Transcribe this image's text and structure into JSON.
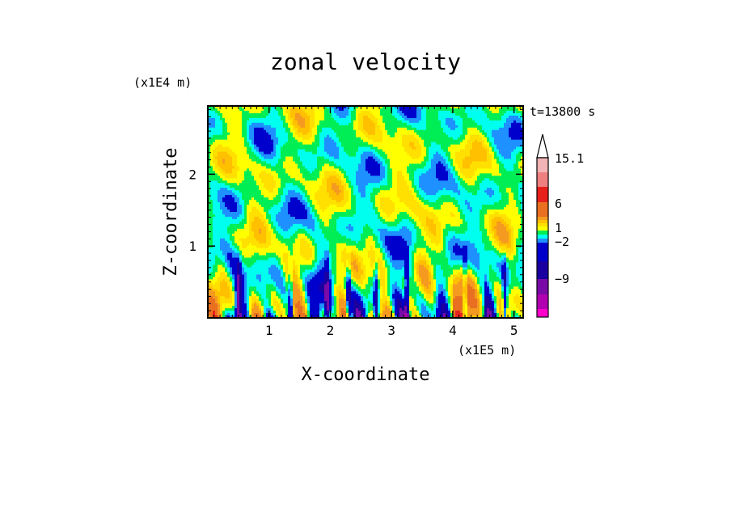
{
  "chart_data": {
    "type": "heatmap",
    "title": "zonal velocity",
    "xlabel": "X-coordinate",
    "ylabel": "Z-coordinate",
    "x_unit": "(x1E5 m)",
    "y_unit": "(x1E4 m)",
    "time_label": "t=13800 s",
    "xlim": [
      0,
      5.15
    ],
    "ylim": [
      0,
      2.95
    ],
    "x_ticks": [
      "1",
      "2",
      "3",
      "4",
      "5"
    ],
    "y_ticks": [
      "1",
      "2"
    ],
    "x_tick_values": [
      1,
      2,
      3,
      4,
      5
    ],
    "y_tick_values": [
      1,
      2
    ],
    "colorbar": {
      "labels": [
        "15.1",
        "6",
        "1",
        "-2",
        "-9"
      ],
      "label_values": [
        15.1,
        6,
        1,
        -2,
        -9
      ],
      "levels": [
        {
          "value": 15.1,
          "color": "#f2b4b4"
        },
        {
          "value": 12,
          "color": "#f08080"
        },
        {
          "value": 9,
          "color": "#e8201c"
        },
        {
          "value": 6,
          "color": "#e87020"
        },
        {
          "value": 4,
          "color": "#f59a20"
        },
        {
          "value": 3,
          "color": "#ffc000"
        },
        {
          "value": 2,
          "color": "#ffe000"
        },
        {
          "value": 1,
          "color": "#ffff00"
        },
        {
          "value": 0,
          "color": "#00ee55"
        },
        {
          "value": -1,
          "color": "#00ffee"
        },
        {
          "value": -2,
          "color": "#1e90ff"
        },
        {
          "value": -4,
          "color": "#0000cc"
        },
        {
          "value": -6,
          "color": "#1a00a0"
        },
        {
          "value": -9,
          "color": "#7a0aa8"
        },
        {
          "value": -12,
          "color": "#b000b0"
        },
        {
          "value": -15,
          "color": "#ff00cc"
        }
      ],
      "extend": "max"
    },
    "grid": false
  }
}
